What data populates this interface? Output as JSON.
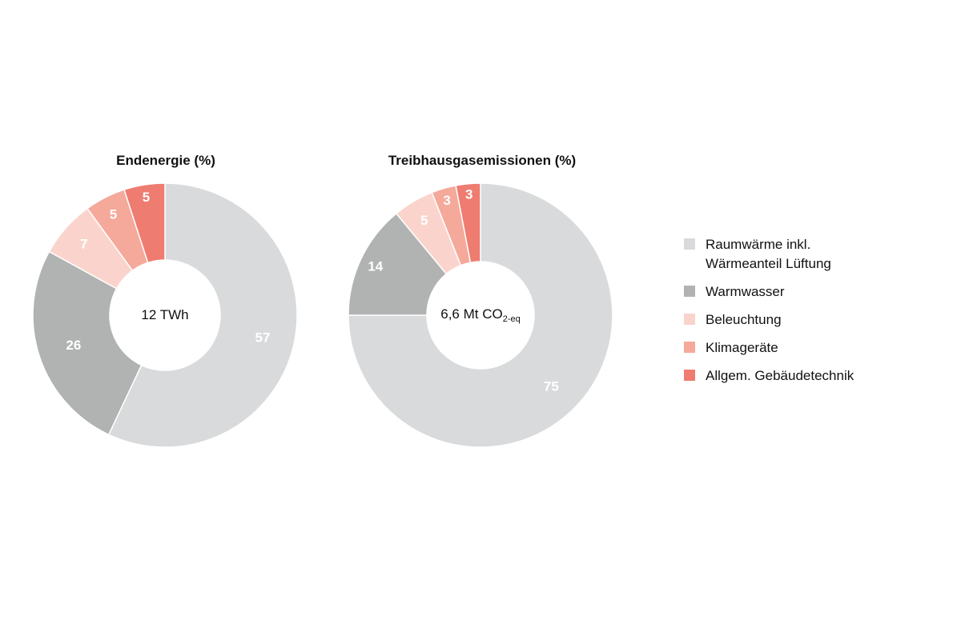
{
  "colors": {
    "raumwaerme": "#d9dadb",
    "warmwasser": "#b1b2b2",
    "beleuchtung": "#fad4cc",
    "klimageraete": "#f4a99a",
    "gebaeudetechnik": "#ef7c70"
  },
  "charts": [
    {
      "title": "Endenergie (%)",
      "center_label": "12 TWh",
      "center_sub": ""
    },
    {
      "title": "Treibhausgasemissionen (%)",
      "center_label": "6,6 Mt CO",
      "center_sub": "2-eq"
    }
  ],
  "legend": [
    {
      "label": "Raumwärme inkl.\nWärmeanteil Lüftung",
      "color": "#d9dadb"
    },
    {
      "label": "Warmwasser",
      "color": "#b1b2b2"
    },
    {
      "label": "Beleuchtung",
      "color": "#fad4cc"
    },
    {
      "label": "Klimageräte",
      "color": "#f4a99a"
    },
    {
      "label": "Allgem. Gebäudetechnik",
      "color": "#ef7c70"
    }
  ],
  "chart_data": [
    {
      "type": "pie",
      "title": "Endenergie (%)",
      "center_label": "12 TWh",
      "categories": [
        "Raumwärme inkl. Wärmeanteil Lüftung",
        "Warmwasser",
        "Beleuchtung",
        "Klimageräte",
        "Allgem. Gebäudetechnik"
      ],
      "values": [
        57,
        26,
        7,
        5,
        5
      ],
      "colors": [
        "#d9dadb",
        "#b1b2b2",
        "#fad4cc",
        "#f4a99a",
        "#ef7c70"
      ],
      "donut": true,
      "legend_position": "right"
    },
    {
      "type": "pie",
      "title": "Treibhausgasemissionen (%)",
      "center_label": "6,6 Mt CO2-eq",
      "categories": [
        "Raumwärme inkl. Wärmeanteil Lüftung",
        "Warmwasser",
        "Beleuchtung",
        "Klimageräte",
        "Allgem. Gebäudetechnik"
      ],
      "values": [
        75,
        14,
        5,
        3,
        3
      ],
      "colors": [
        "#d9dadb",
        "#b1b2b2",
        "#fad4cc",
        "#f4a99a",
        "#ef7c70"
      ],
      "donut": true,
      "legend_position": "right"
    }
  ]
}
